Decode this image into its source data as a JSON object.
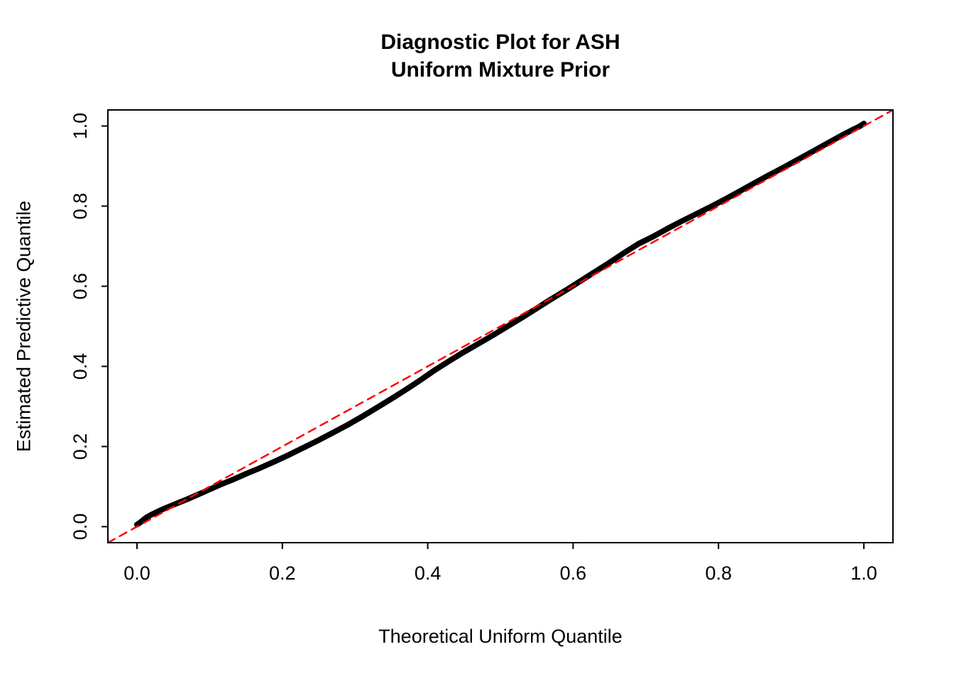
{
  "chart_data": {
    "type": "scatter",
    "title": "Diagnostic Plot for ASH",
    "subtitle": "Uniform Mixture Prior",
    "xlabel": "Theoretical Uniform Quantile",
    "ylabel": "Estimated Predictive Quantile",
    "xlim": [
      -0.04,
      1.04
    ],
    "ylim": [
      -0.04,
      1.04
    ],
    "grid": false,
    "legend": "none",
    "xticks": [
      0.0,
      0.2,
      0.4,
      0.6,
      0.8,
      1.0
    ],
    "yticks": [
      0.0,
      0.2,
      0.4,
      0.6,
      0.8,
      1.0
    ],
    "xtick_labels": [
      "0.0",
      "0.2",
      "0.4",
      "0.6",
      "0.8",
      "1.0"
    ],
    "ytick_labels": [
      "0.0",
      "0.2",
      "0.4",
      "0.6",
      "0.8",
      "1.0"
    ],
    "series": [
      {
        "name": "estimated-predictive-quantiles",
        "style": "solid",
        "color": "#000000",
        "stroke_width": 8,
        "points": [
          [
            0.0,
            0.005
          ],
          [
            0.004,
            0.01
          ],
          [
            0.008,
            0.016
          ],
          [
            0.013,
            0.023
          ],
          [
            0.02,
            0.03
          ],
          [
            0.03,
            0.039
          ],
          [
            0.04,
            0.047
          ],
          [
            0.055,
            0.058
          ],
          [
            0.07,
            0.069
          ],
          [
            0.085,
            0.081
          ],
          [
            0.1,
            0.093
          ],
          [
            0.115,
            0.105
          ],
          [
            0.13,
            0.116
          ],
          [
            0.15,
            0.132
          ],
          [
            0.17,
            0.147
          ],
          [
            0.19,
            0.163
          ],
          [
            0.21,
            0.18
          ],
          [
            0.23,
            0.198
          ],
          [
            0.25,
            0.216
          ],
          [
            0.27,
            0.235
          ],
          [
            0.29,
            0.254
          ],
          [
            0.31,
            0.275
          ],
          [
            0.33,
            0.297
          ],
          [
            0.35,
            0.319
          ],
          [
            0.37,
            0.342
          ],
          [
            0.39,
            0.366
          ],
          [
            0.41,
            0.391
          ],
          [
            0.43,
            0.414
          ],
          [
            0.45,
            0.436
          ],
          [
            0.47,
            0.457
          ],
          [
            0.49,
            0.478
          ],
          [
            0.51,
            0.5
          ],
          [
            0.53,
            0.522
          ],
          [
            0.55,
            0.545
          ],
          [
            0.57,
            0.568
          ],
          [
            0.59,
            0.59
          ],
          [
            0.61,
            0.613
          ],
          [
            0.63,
            0.636
          ],
          [
            0.65,
            0.659
          ],
          [
            0.67,
            0.683
          ],
          [
            0.69,
            0.706
          ],
          [
            0.71,
            0.724
          ],
          [
            0.73,
            0.744
          ],
          [
            0.75,
            0.763
          ],
          [
            0.77,
            0.781
          ],
          [
            0.79,
            0.799
          ],
          [
            0.81,
            0.818
          ],
          [
            0.83,
            0.838
          ],
          [
            0.85,
            0.858
          ],
          [
            0.87,
            0.878
          ],
          [
            0.89,
            0.897
          ],
          [
            0.91,
            0.917
          ],
          [
            0.93,
            0.937
          ],
          [
            0.95,
            0.957
          ],
          [
            0.97,
            0.977
          ],
          [
            0.985,
            0.991
          ],
          [
            0.993,
            0.998
          ],
          [
            1.0,
            1.006
          ]
        ]
      },
      {
        "name": "identity-reference",
        "style": "dashed",
        "color": "#FF0000",
        "stroke_width": 2.5,
        "points": [
          [
            -0.04,
            -0.04
          ],
          [
            1.04,
            1.04
          ]
        ]
      }
    ]
  }
}
